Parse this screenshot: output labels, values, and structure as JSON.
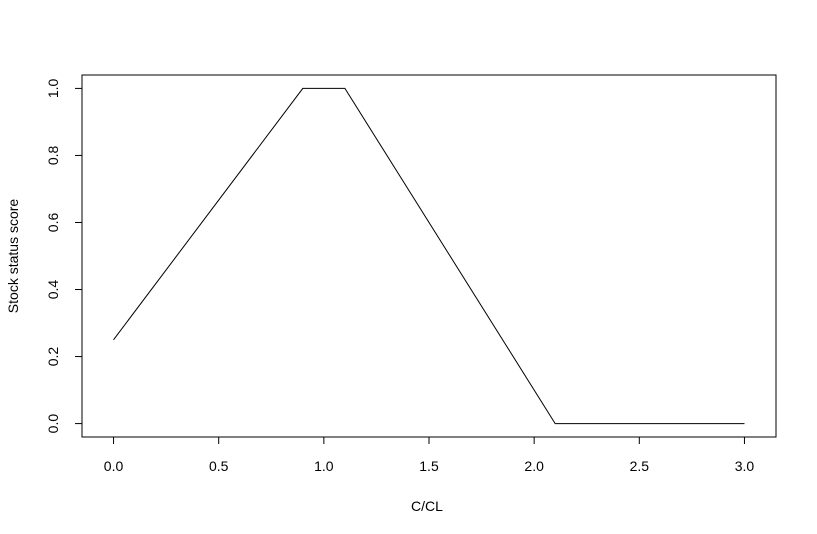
{
  "chart_data": {
    "type": "line",
    "title": "",
    "xlabel": "C/CL",
    "ylabel": "Stock status score",
    "xlim": [
      -0.15,
      3.15
    ],
    "ylim": [
      -0.04,
      1.04
    ],
    "xticks": [
      "0.0",
      "0.5",
      "1.0",
      "1.5",
      "2.0",
      "2.5",
      "3.0"
    ],
    "yticks": [
      "0.0",
      "0.2",
      "0.4",
      "0.6",
      "0.8",
      "1.0"
    ],
    "grid": false,
    "legend": "none",
    "line_color": "#000000",
    "series": [
      {
        "x": [
          0.0,
          0.9,
          1.1,
          2.1,
          3.0
        ],
        "y": [
          0.25,
          1.0,
          1.0,
          0.0,
          0.0
        ]
      }
    ]
  }
}
